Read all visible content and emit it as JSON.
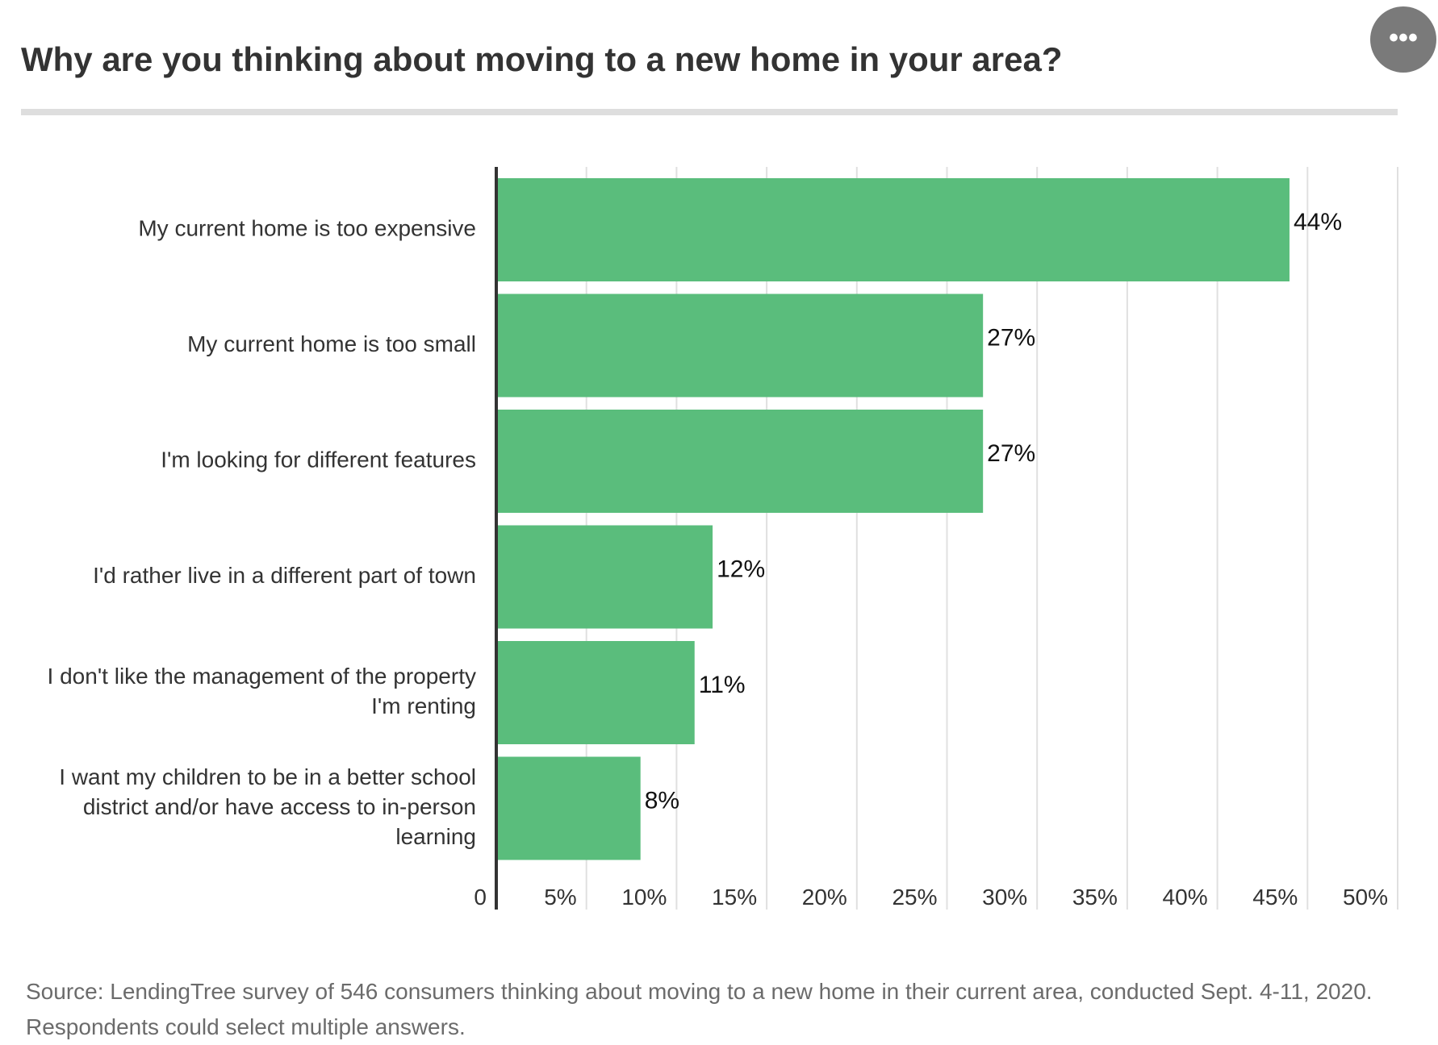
{
  "chart_data": {
    "type": "bar",
    "orientation": "horizontal",
    "title": "Why are you thinking about moving to a new home in your area?",
    "categories": [
      "My current home is too expensive",
      "My current home is too small",
      "I'm looking for different features",
      "I'd rather live in a different part of town",
      "I don't like the management of the property I'm renting",
      "I want my children to be in a better school district and/or have access to in-person learning"
    ],
    "category_lines": [
      [
        "My current home is too expensive"
      ],
      [
        "My current home is too small"
      ],
      [
        "I'm looking for different features"
      ],
      [
        "I'd rather live in a different part of town"
      ],
      [
        "I don't like the management of the property",
        "I'm renting"
      ],
      [
        "I want my children to be in a better school",
        "district and/or have access to in-person",
        "learning"
      ]
    ],
    "values": [
      44,
      27,
      27,
      12,
      11,
      8
    ],
    "data_labels": [
      "44%",
      "27%",
      "27%",
      "12%",
      "11%",
      "8%"
    ],
    "xlim": [
      0,
      50
    ],
    "x_ticks": [
      0,
      5,
      10,
      15,
      20,
      25,
      30,
      35,
      40,
      45,
      50
    ],
    "x_tick_labels": [
      "0",
      "5%",
      "10%",
      "15%",
      "20%",
      "25%",
      "30%",
      "35%",
      "40%",
      "45%",
      "50%"
    ],
    "grid": true,
    "bar_color": "#5abd7c",
    "gridline_color": "#e0e0e0",
    "axis_color": "#333333",
    "source": "Source: LendingTree survey of 546 consumers thinking about moving to a new home in their current area, conducted Sept. 4-11, 2020. Respondents could select multiple answers."
  },
  "menu": {
    "more_icon": "ellipsis-icon",
    "more_label": "•••"
  }
}
